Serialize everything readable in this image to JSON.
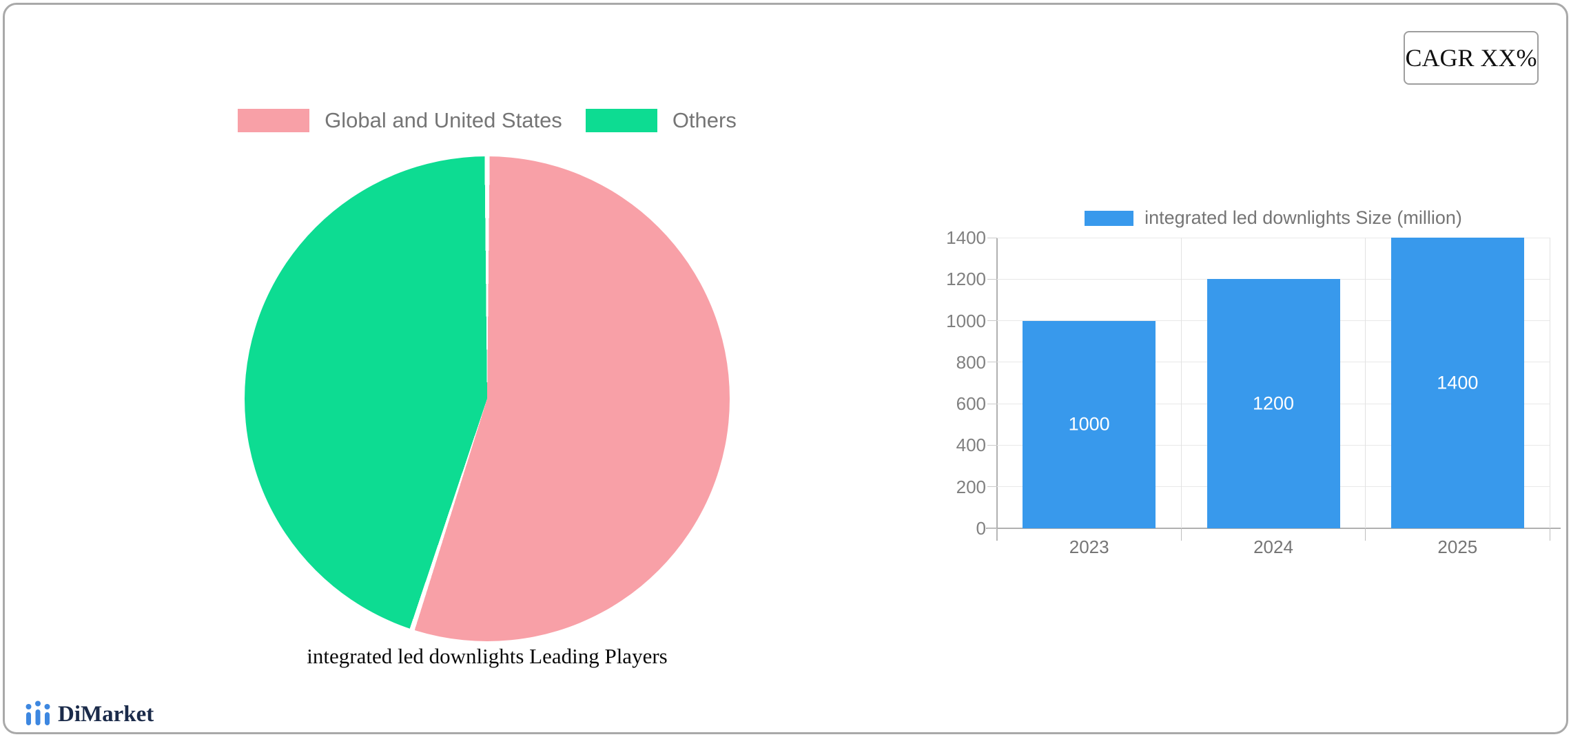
{
  "card": {
    "cagr_label": "CAGR XX%"
  },
  "logo": {
    "text": "DiMarket",
    "icon_color": "#3d87e0"
  },
  "colors": {
    "pie_slice_1": "#F8A0A7",
    "pie_slice_2": "#0DDC92",
    "bar_fill": "#3899EC",
    "legend_text": "#757575",
    "axis_text": "#808080"
  },
  "chart_data": [
    {
      "type": "pie",
      "title": "integrated led downlights Leading Players",
      "legend_position": "top",
      "slices": [
        {
          "label": "Global and United States",
          "value": 55,
          "color": "#F8A0A7"
        },
        {
          "label": "Others",
          "value": 45,
          "color": "#0DDC92"
        }
      ]
    },
    {
      "type": "bar",
      "legend": "integrated led downlights Size (million)",
      "legend_position": "top",
      "categories": [
        "2023",
        "2024",
        "2025"
      ],
      "values": [
        1000,
        1200,
        1400
      ],
      "value_labels": [
        "1000",
        "1200",
        "1400"
      ],
      "bar_color": "#3899EC",
      "ylim": [
        0,
        1400
      ],
      "yticks": [
        0,
        200,
        400,
        600,
        800,
        1000,
        1200,
        1400
      ],
      "grid": true
    }
  ]
}
